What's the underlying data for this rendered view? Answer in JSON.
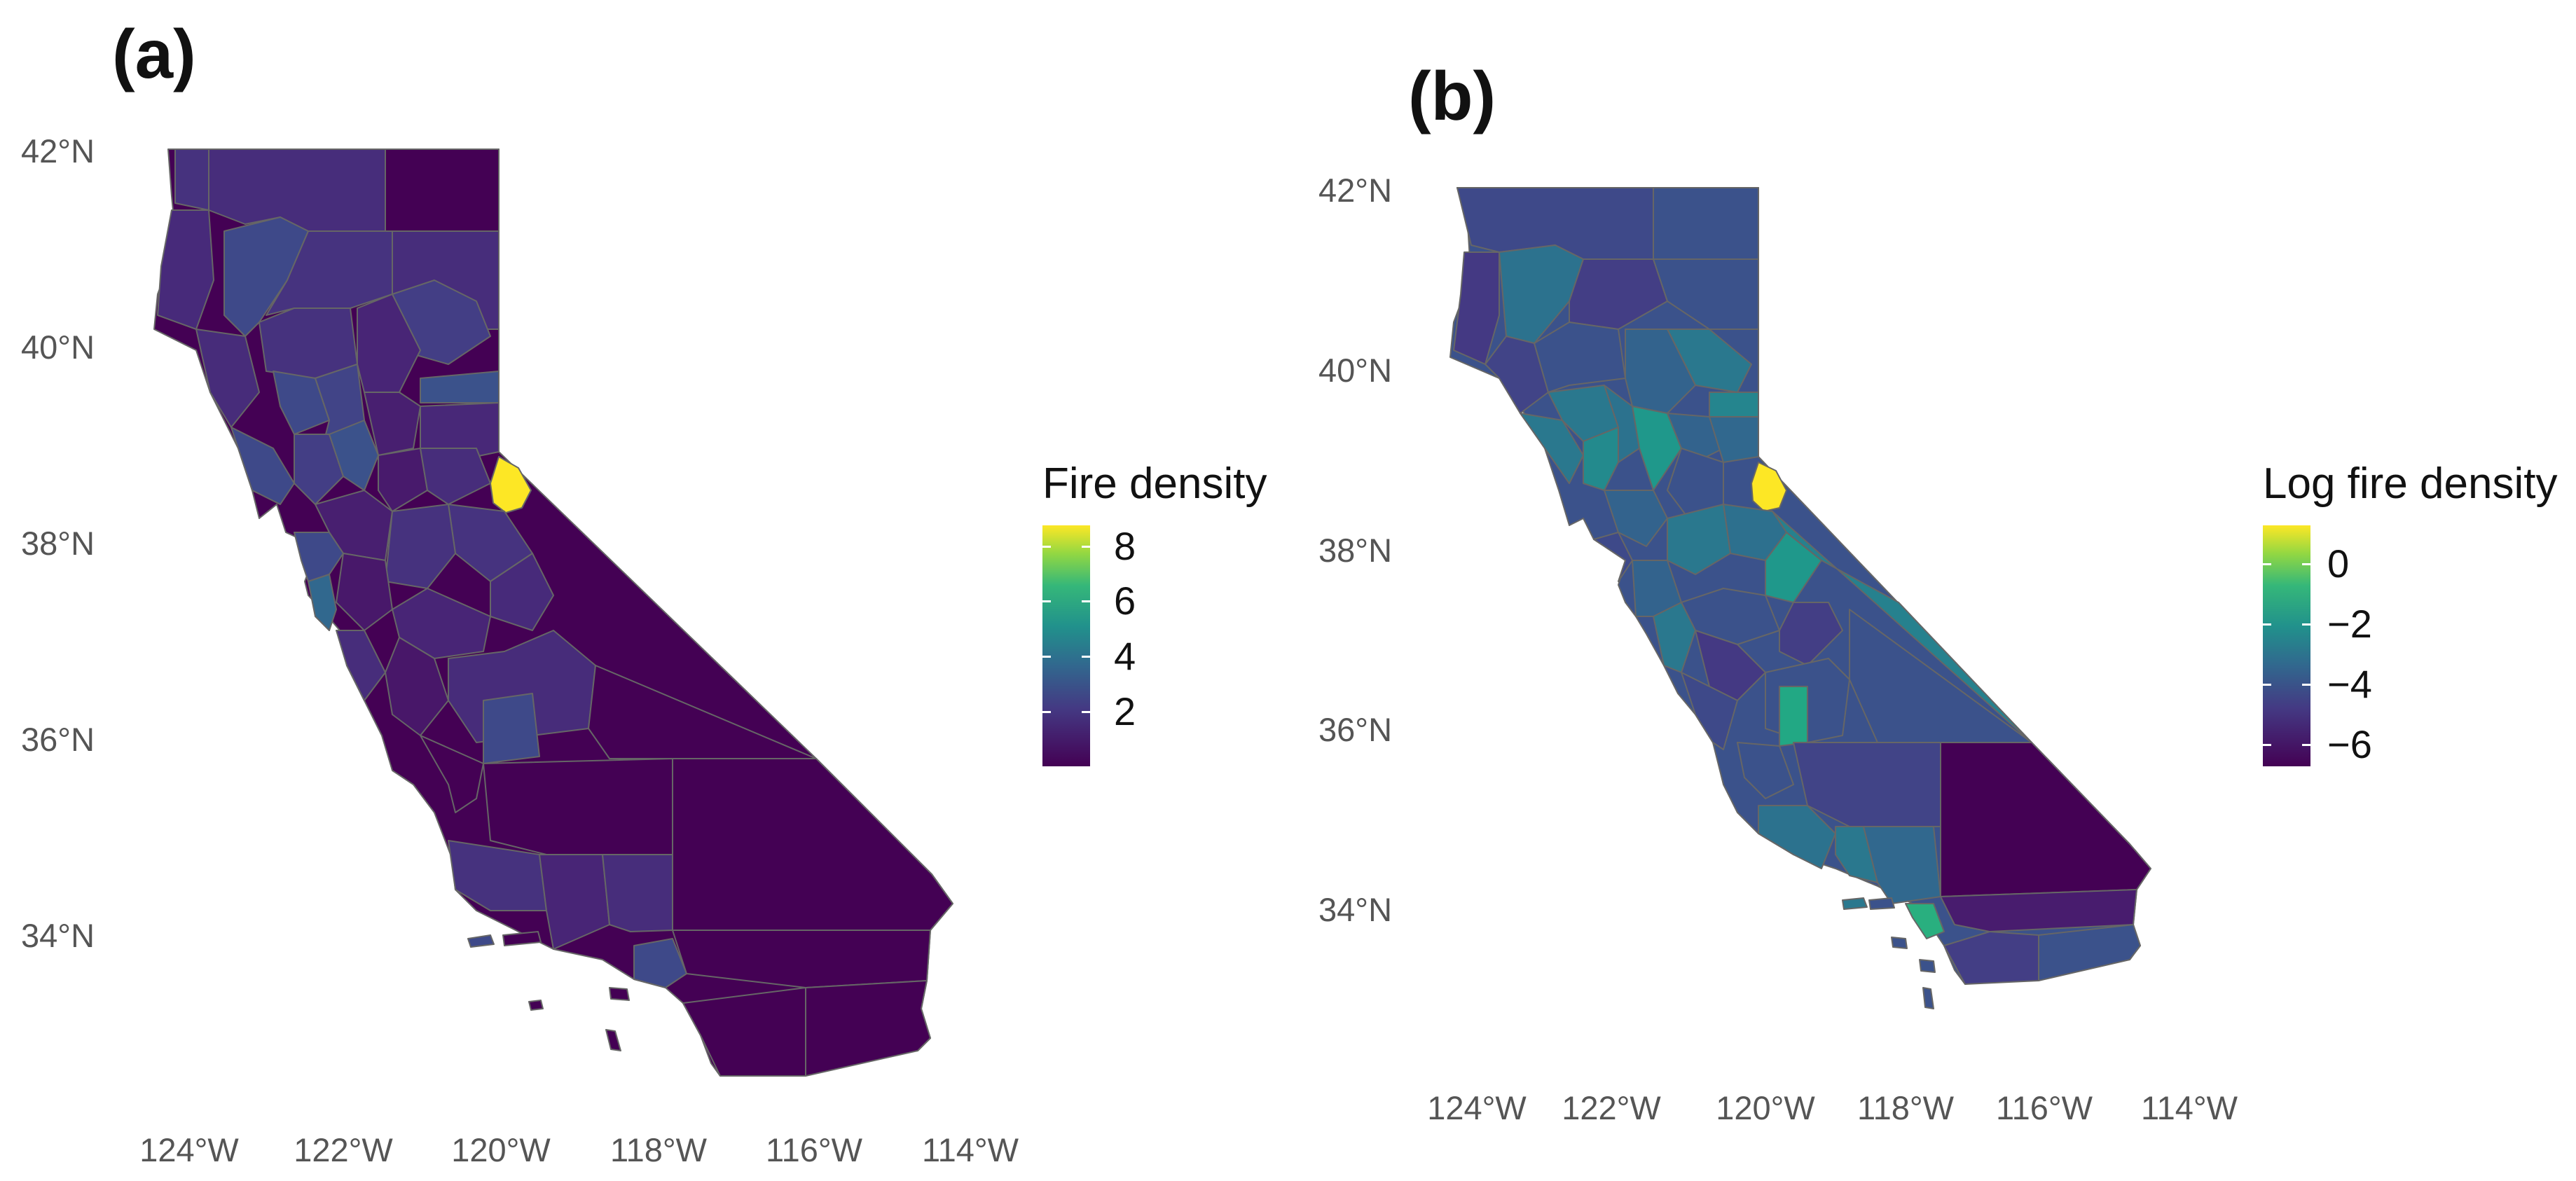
{
  "panels": [
    {
      "label": "(a)",
      "legend_title": "Fire density",
      "legend_ticks": [
        "8",
        "6",
        "4",
        "2"
      ],
      "y_ticks": [
        "42°N",
        "40°N",
        "38°N",
        "36°N",
        "34°N"
      ],
      "x_ticks": [
        "124°W",
        "122°W",
        "120°W",
        "118°W",
        "116°W",
        "114°W"
      ],
      "colormap": "viridis",
      "legend_range": [
        0,
        8.8
      ]
    },
    {
      "label": "(b)",
      "legend_title": "Log fire density",
      "legend_ticks": [
        "0",
        "−2",
        "−4",
        "−6"
      ],
      "y_ticks": [
        "42°N",
        "40°N",
        "38°N",
        "36°N",
        "34°N"
      ],
      "x_ticks": [
        "124°W",
        "122°W",
        "120°W",
        "118°W",
        "116°W",
        "114°W"
      ],
      "colormap": "viridis",
      "legend_range": [
        -7,
        1
      ]
    }
  ],
  "colors": {
    "viridis_low": "#440154",
    "viridis_mid": "#21918c",
    "viridis_high": "#fde725",
    "boundary": "#666666"
  },
  "chart_data": {
    "type": "choropleth",
    "region": "California counties",
    "projection": "longitude / latitude",
    "lon_range": [
      -124.5,
      -114.0
    ],
    "lat_range": [
      32.5,
      42.0
    ]
  }
}
